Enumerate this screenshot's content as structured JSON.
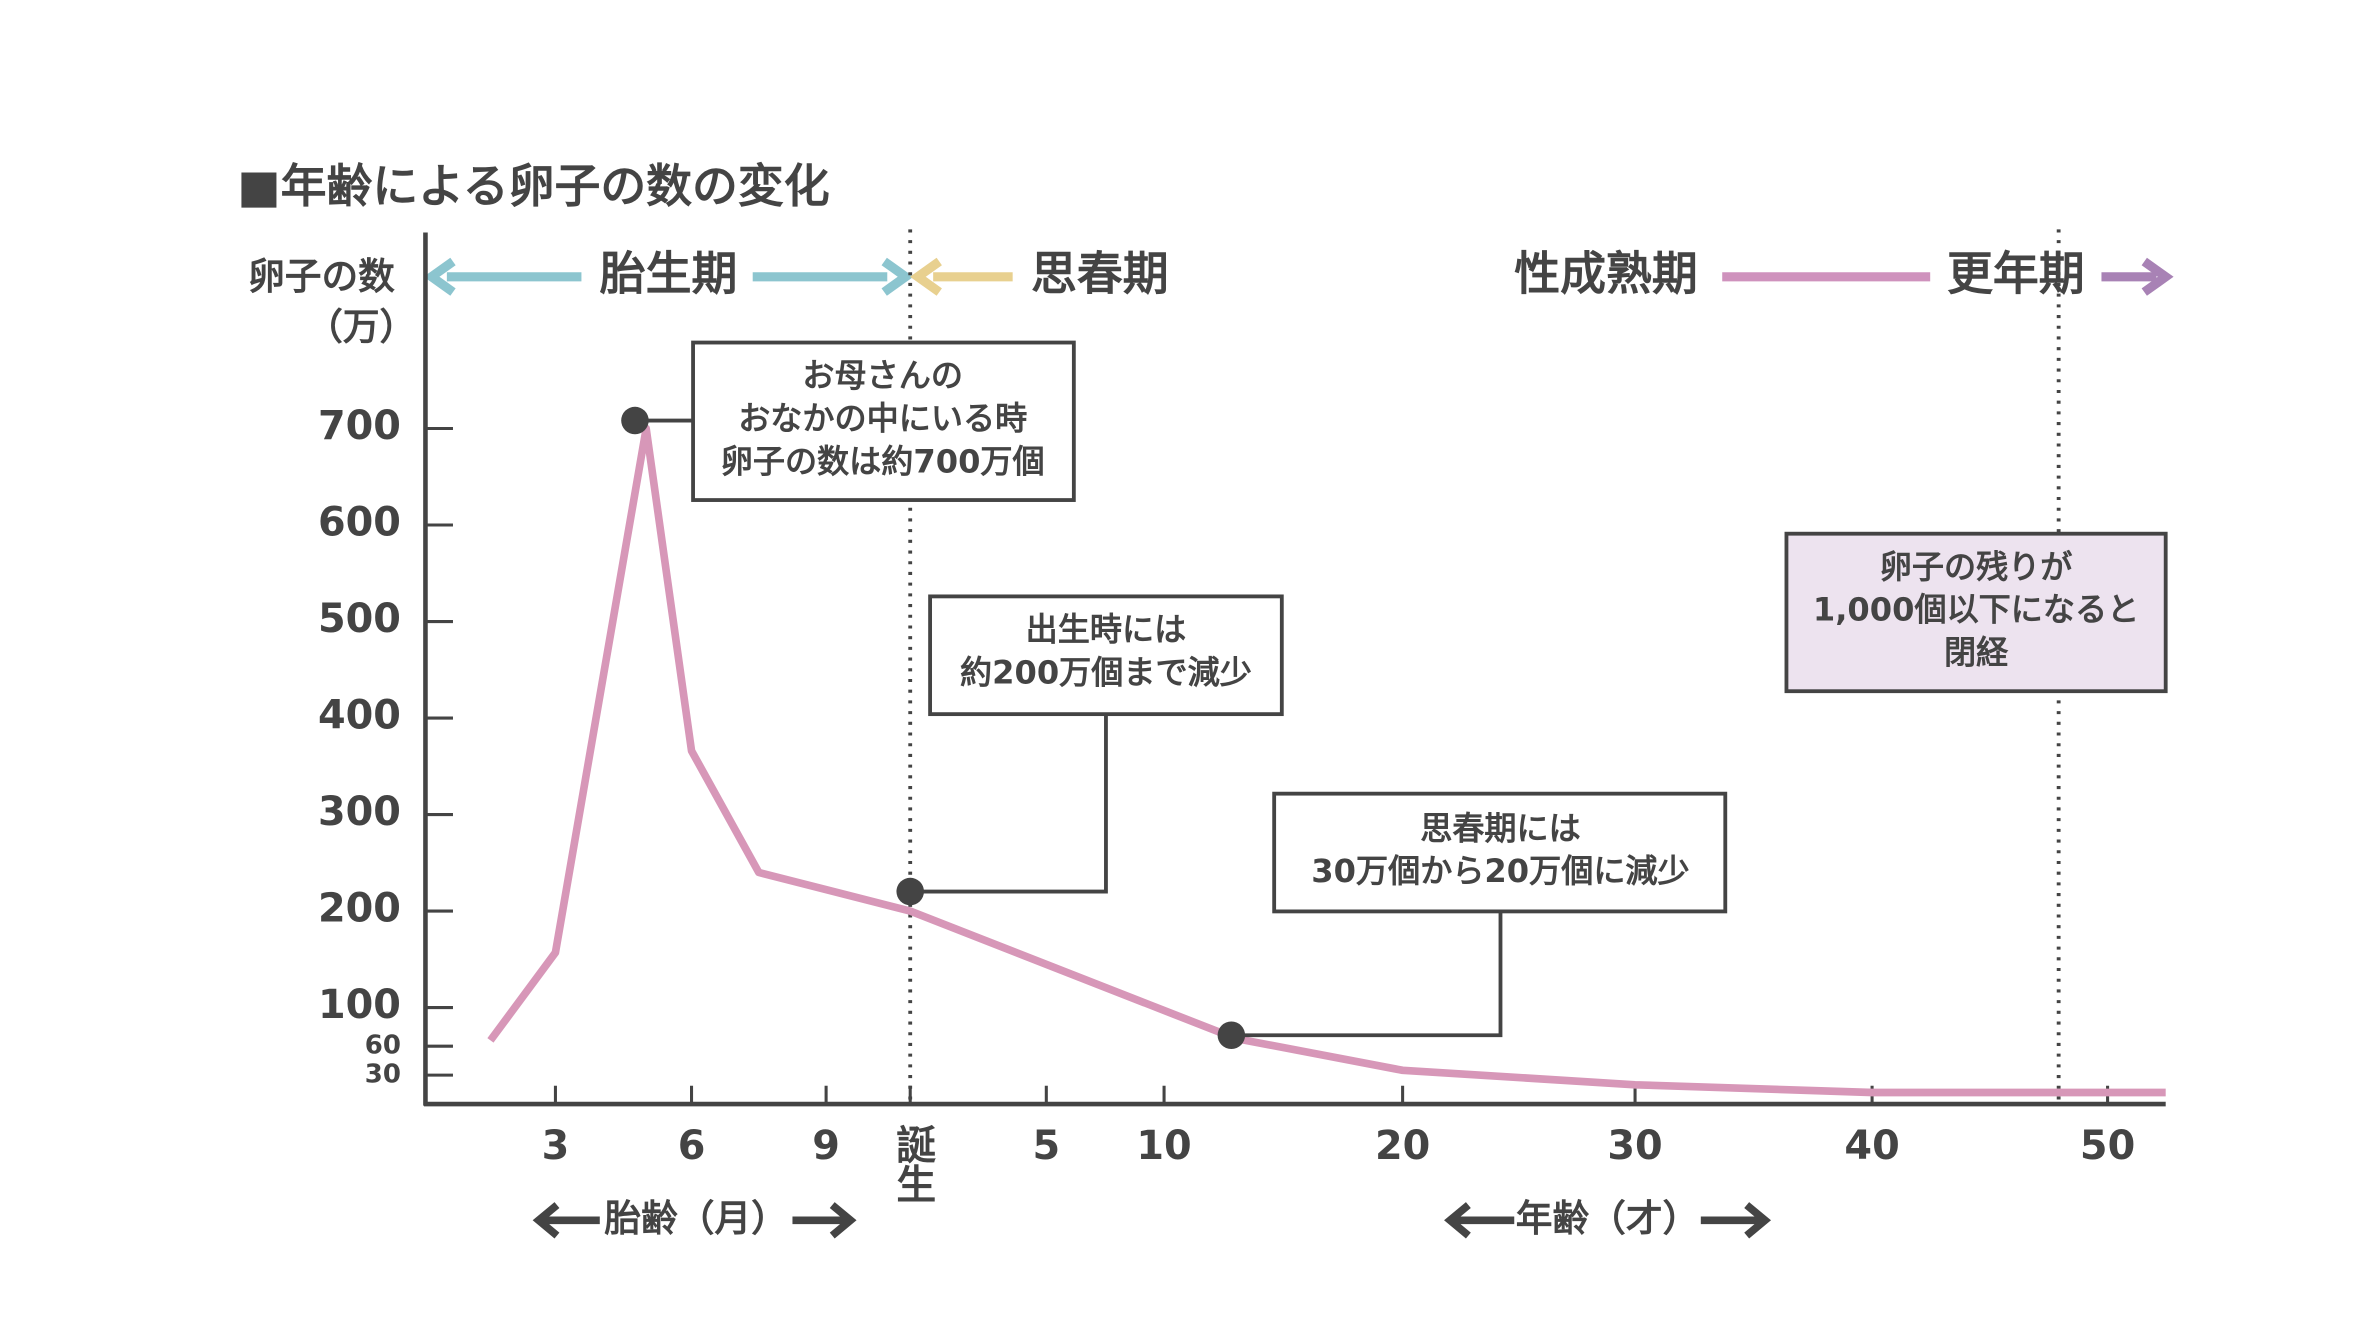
{
  "chart_data": {
    "type": "line",
    "title": "■年齢による卵子の数の変化",
    "ylabel": "卵子の数",
    "ylabel_unit": "（万）",
    "xlabel_fetal": "胎齢（月）",
    "xlabel_age": "年齢（才）",
    "phases": [
      "胎生期",
      "思春期",
      "性成熟期",
      "更年期"
    ],
    "x": [
      1.5,
      3,
      5,
      6,
      7.5,
      10,
      166,
      250,
      370,
      490,
      640
    ],
    "values": [
      66,
      157,
      700,
      366,
      240,
      200,
      68,
      35,
      20,
      12,
      12
    ],
    "color": "#d797b8",
    "xlim": [
      0,
      640
    ],
    "xticks": [
      3,
      6,
      9,
      {
        "value": 10,
        "label": "誕生"
      },
      {
        "value": 70,
        "label": "5"
      },
      {
        "value": 130,
        "label": "10"
      },
      {
        "value": 250,
        "label": "20"
      },
      {
        "value": 370,
        "label": "30"
      },
      {
        "value": 490,
        "label": "40"
      },
      {
        "value": 610,
        "label": "50"
      }
    ],
    "ylim": [
      0,
      900
    ],
    "yticks": [
      30,
      60,
      100,
      200,
      300,
      400,
      500,
      600,
      700
    ],
    "annotations": [
      {
        "lines": [
          "お母さんの",
          "おなかの中にいる時",
          "卵子の数は約700万個"
        ]
      },
      {
        "lines": [
          "出生時には",
          "約200万個まで減少"
        ]
      },
      {
        "lines": [
          "思春期には",
          "30万個から20万個に減少"
        ]
      },
      {
        "lines": [
          "卵子の残りが",
          "1,000個以下になると",
          "閉経"
        ]
      }
    ]
  }
}
